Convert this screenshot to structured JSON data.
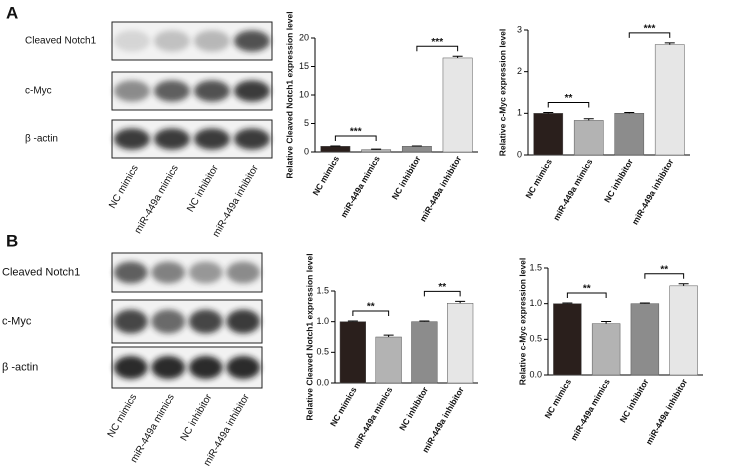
{
  "panels": [
    "A",
    "B"
  ],
  "blots": [
    {
      "rows": [
        "Cleaved Notch1",
        "c-Myc",
        "β -actin"
      ],
      "lanes": [
        "NC mimics",
        "miR-449a mimics",
        "NC inhibitor",
        "miR-449a inhibitor"
      ]
    },
    {
      "rows": [
        "Cleaved Notch1",
        "c-Myc",
        "β -actin"
      ],
      "lanes": [
        "NC mimics",
        "miR-449a mimics",
        "NC inhibitor",
        "miR-449a inhibitor"
      ]
    }
  ],
  "chart_data": [
    {
      "type": "bar",
      "ylabel": "Relative Cleaved Notch1 expression level",
      "categories": [
        "NC mimics",
        "miR-449a mimics",
        "NC inhibitor",
        "miR-449a inhibitor"
      ],
      "values": [
        1,
        0.4,
        1,
        16.5
      ],
      "errors": [
        0.05,
        0.1,
        0.05,
        0.3
      ],
      "colors": [
        "#2a1f1c",
        "#b3b3b3",
        "#8c8c8c",
        "#e6e6e6"
      ],
      "ylim": [
        0,
        20
      ],
      "yticks": [
        0,
        5,
        10,
        15,
        20
      ],
      "annotations": [
        {
          "text": "***",
          "from": 0,
          "to": 1
        },
        {
          "text": "***",
          "from": 2,
          "to": 3
        }
      ]
    },
    {
      "type": "bar",
      "ylabel": "Relative c-Myc expression level",
      "categories": [
        "NC mimics",
        "miR-449a mimics",
        "NC inhibitor",
        "miR-449a inhibitor"
      ],
      "values": [
        1,
        0.83,
        1,
        2.65
      ],
      "errors": [
        0.02,
        0.04,
        0.02,
        0.04
      ],
      "colors": [
        "#2a1f1c",
        "#b3b3b3",
        "#8c8c8c",
        "#e6e6e6"
      ],
      "ylim": [
        0,
        3
      ],
      "yticks": [
        0,
        1,
        2,
        3
      ],
      "annotations": [
        {
          "text": "**",
          "from": 0,
          "to": 1
        },
        {
          "text": "***",
          "from": 2,
          "to": 3
        }
      ]
    },
    {
      "type": "bar",
      "ylabel": "Relative Cleaved Notch1 expression level",
      "categories": [
        "NC mimics",
        "miR-449a mimics",
        "NC inhibitor",
        "miR-449a inhibitor"
      ],
      "values": [
        1.0,
        0.75,
        1.0,
        1.3
      ],
      "errors": [
        0.01,
        0.03,
        0.01,
        0.03
      ],
      "colors": [
        "#2a1f1c",
        "#b3b3b3",
        "#8c8c8c",
        "#e6e6e6"
      ],
      "ylim": [
        0,
        1.5
      ],
      "yticks": [
        {
          "value": 0,
          "label": "0.0"
        },
        0.5,
        {
          "value": 1,
          "label": "1.0"
        },
        1.5
      ],
      "annotations": [
        {
          "text": "**",
          "from": 0,
          "to": 1
        },
        {
          "text": "**",
          "from": 2,
          "to": 3
        }
      ]
    },
    {
      "type": "bar",
      "ylabel": "Relative c-Myc expression level",
      "categories": [
        "NC mimics",
        "miR-449a mimics",
        "NC inhibitor",
        "miR-449a inhibitor"
      ],
      "values": [
        1.0,
        0.72,
        1.0,
        1.25
      ],
      "errors": [
        0.01,
        0.03,
        0.01,
        0.03
      ],
      "colors": [
        "#2a1f1c",
        "#b3b3b3",
        "#8c8c8c",
        "#e6e6e6"
      ],
      "ylim": [
        0,
        1.5
      ],
      "yticks": [
        {
          "value": 0,
          "label": "0.0"
        },
        0.5,
        {
          "value": 1,
          "label": "1.0"
        },
        1.5
      ],
      "annotations": [
        {
          "text": "**",
          "from": 0,
          "to": 1
        },
        {
          "text": "**",
          "from": 2,
          "to": 3
        }
      ]
    }
  ]
}
